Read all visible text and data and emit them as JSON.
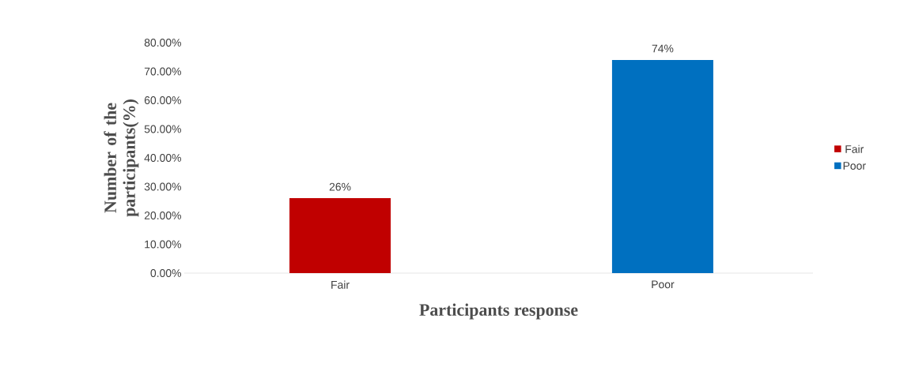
{
  "chart_data": {
    "type": "bar",
    "xlabel": "Participants response",
    "ylabel": "Number of the participants(%)",
    "categories": [
      "Fair",
      "Poor"
    ],
    "series": [
      {
        "name": "Fair",
        "color": "#c00000",
        "values": [
          26,
          null
        ],
        "value_labels": [
          "26%",
          null
        ]
      },
      {
        "name": "Poor",
        "color": "#0070c0",
        "values": [
          null,
          74
        ],
        "value_labels": [
          null,
          "74%"
        ]
      }
    ],
    "ylim": [
      0,
      80
    ],
    "yticks": [
      {
        "value": 0,
        "label": "0.00%"
      },
      {
        "value": 10,
        "label": "10.00%"
      },
      {
        "value": 20,
        "label": "20.00%"
      },
      {
        "value": 30,
        "label": "30.00%"
      },
      {
        "value": 40,
        "label": "40.00%"
      },
      {
        "value": 50,
        "label": "50.00%"
      },
      {
        "value": 60,
        "label": "60.00%"
      },
      {
        "value": 70,
        "label": "70.00%"
      },
      {
        "value": 80,
        "label": "80.00%"
      }
    ],
    "legend": "right"
  }
}
